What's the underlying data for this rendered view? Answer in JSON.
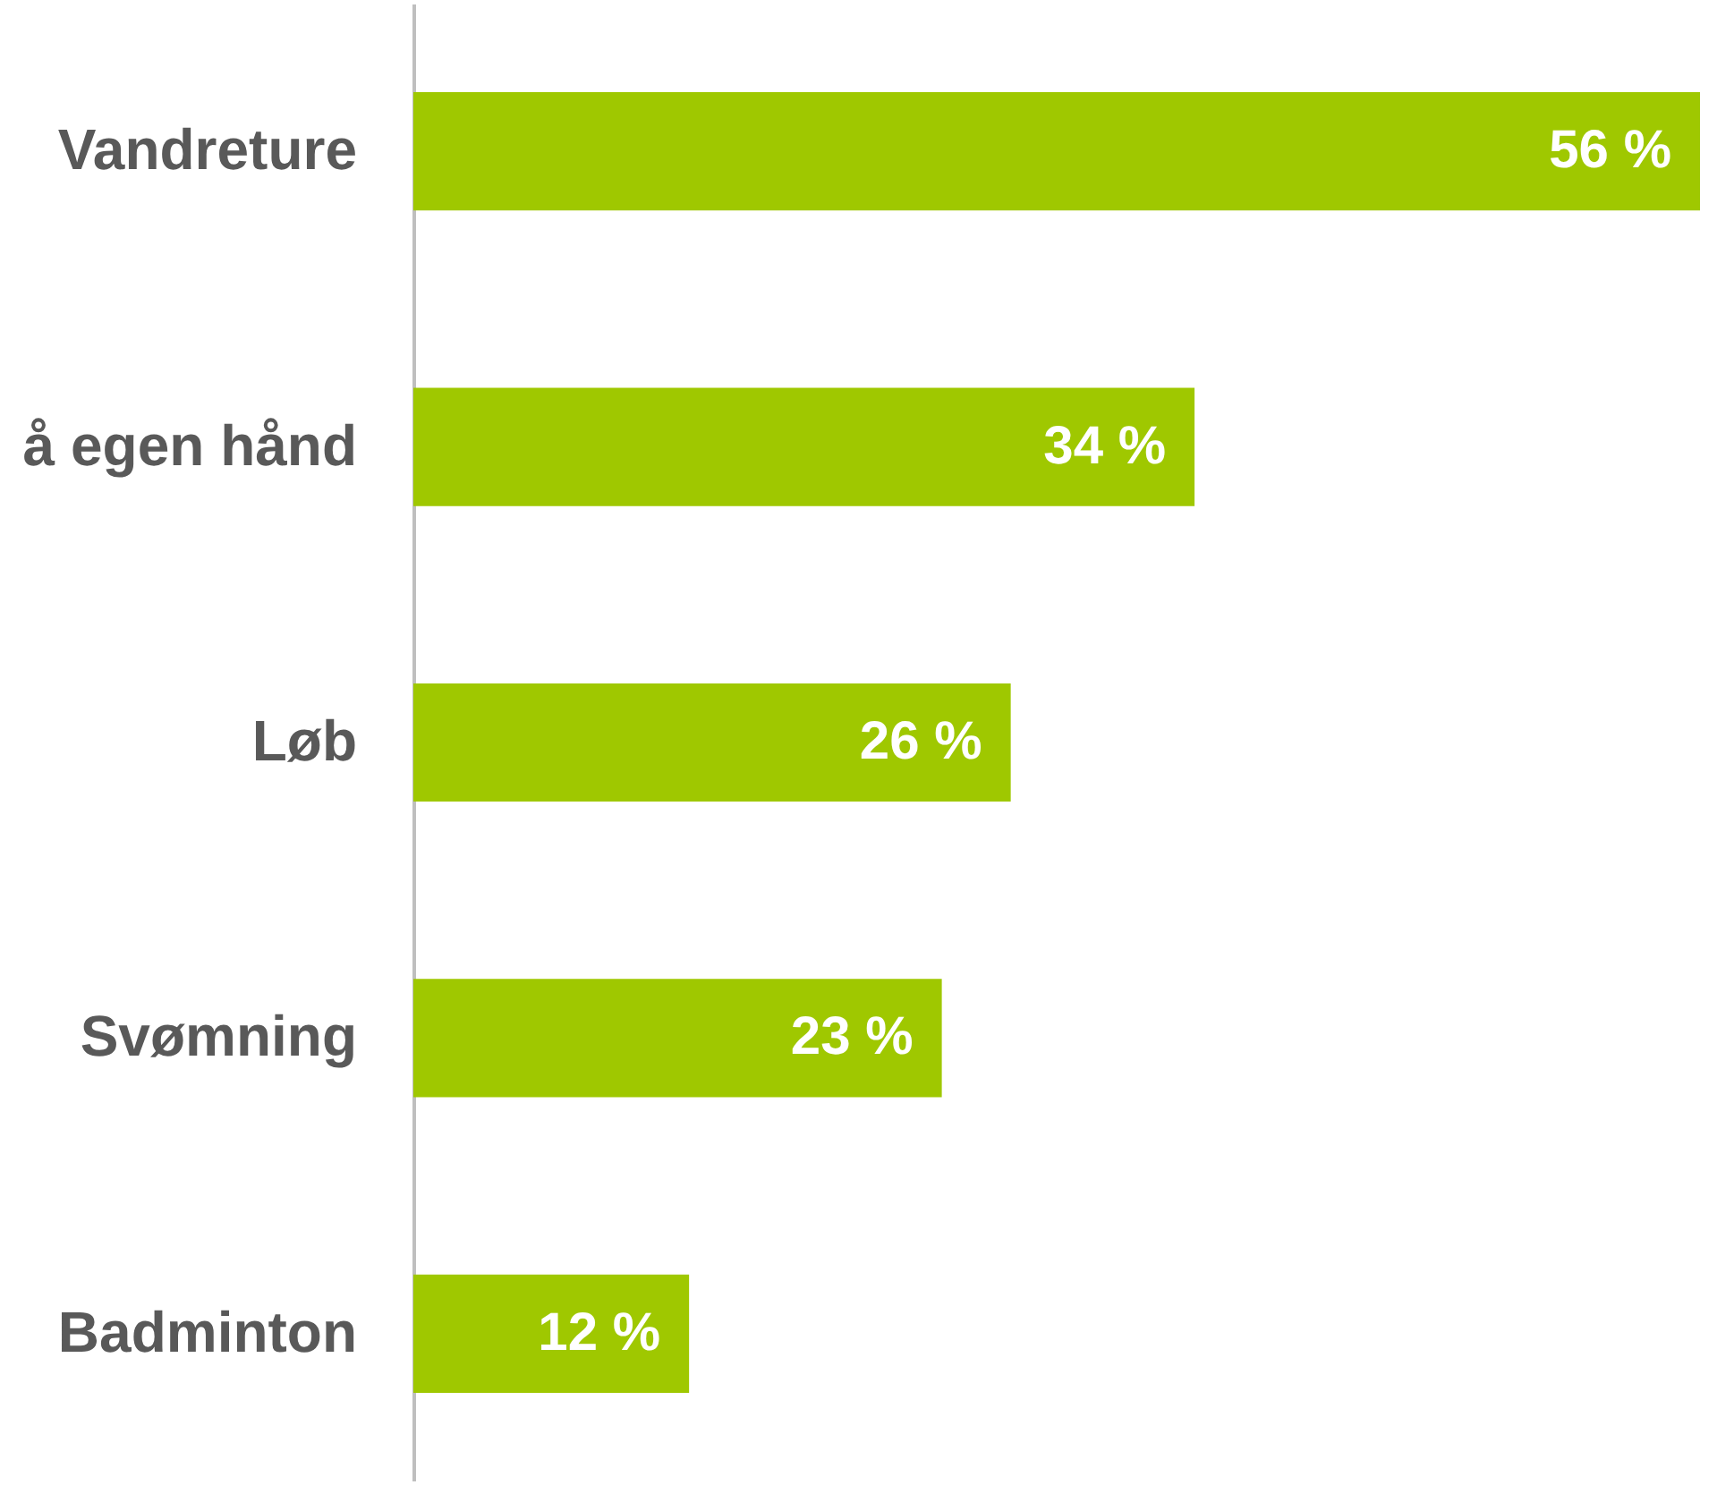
{
  "chart_data": {
    "type": "bar",
    "orientation": "horizontal",
    "categories": [
      "Vandreture",
      "å egen hånd",
      "Løb",
      "Svømning",
      "Badminton"
    ],
    "values": [
      56,
      34,
      26,
      23,
      12
    ],
    "value_labels": [
      "56 %",
      "34 %",
      "26 %",
      "23 %",
      "12 %"
    ],
    "color": "#9fc800"
  }
}
